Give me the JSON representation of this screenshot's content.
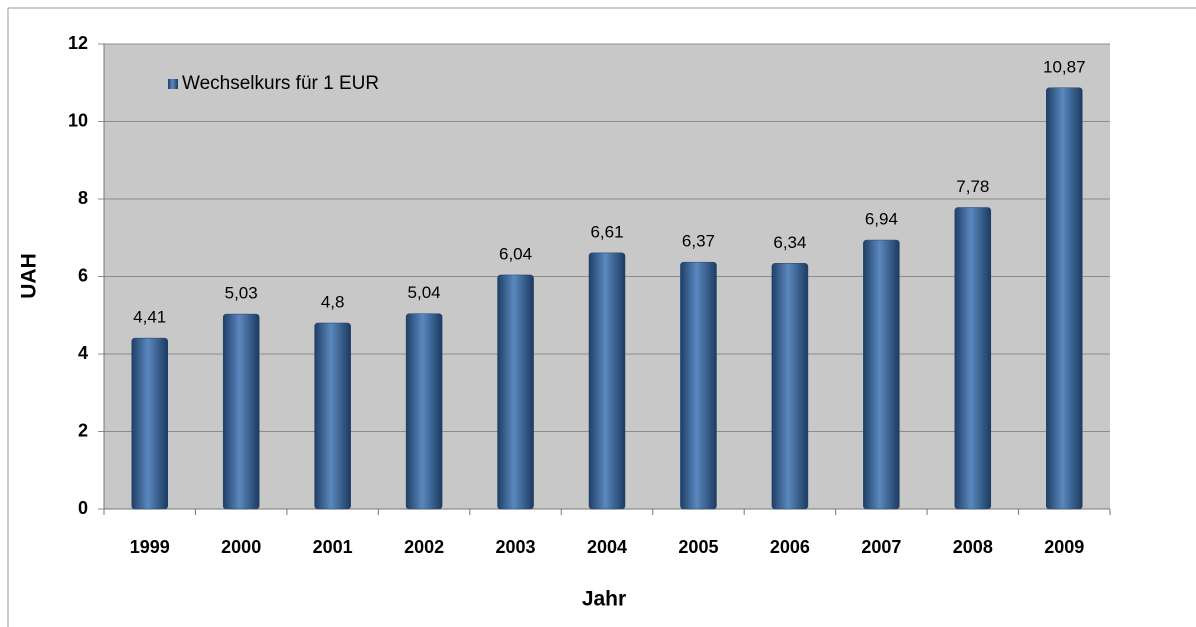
{
  "chart_data": {
    "type": "bar",
    "x_label": "Jahr",
    "y_label": "UAH",
    "categories": [
      "1999",
      "2000",
      "2001",
      "2002",
      "2003",
      "2004",
      "2005",
      "2006",
      "2007",
      "2008",
      "2009"
    ],
    "series": [
      {
        "name": "Wechselkurs für 1 EUR",
        "color": "#4a76a8",
        "values": [
          4.41,
          5.03,
          4.8,
          5.04,
          6.04,
          6.61,
          6.37,
          6.34,
          6.94,
          7.78,
          10.87
        ],
        "value_labels": [
          "4,41",
          "5,03",
          "4,8",
          "5,04",
          "6,04",
          "6,61",
          "6,37",
          "6,34",
          "6,94",
          "7,78",
          "10,87"
        ]
      }
    ],
    "ylim": [
      0,
      12
    ],
    "yticks": [
      0,
      2,
      4,
      6,
      8,
      10,
      12
    ],
    "grid": true,
    "legend": "top-left"
  }
}
